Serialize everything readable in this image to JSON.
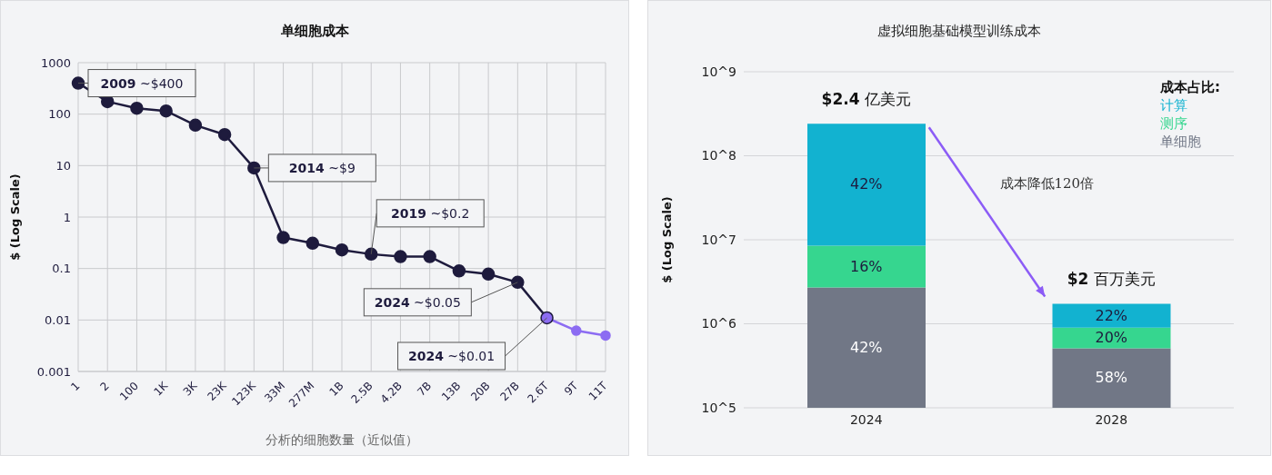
{
  "chart_data": [
    {
      "type": "line",
      "title": "单细胞成本",
      "xlabel": "分析的细胞数量（近似值）",
      "ylabel": "$ (Log Scale)",
      "log": "y",
      "grid": true,
      "marker": "circle",
      "line_style": "solid",
      "legend": false,
      "categories": [
        "1",
        "2",
        "100",
        "1K",
        "3K",
        "23K",
        "123K",
        "33M",
        "277M",
        "1B",
        "2.5B",
        "4.2B",
        "7B",
        "13B",
        "20B",
        "27B",
        "2.6T",
        "9T",
        "11T"
      ],
      "series": [
        {
          "color": "#1e1b3d",
          "values": [
            400,
            175,
            130,
            115,
            61,
            40,
            9,
            0.4,
            0.31,
            0.23,
            0.19,
            0.17,
            0.17,
            0.09,
            0.078,
            0.054,
            0.011,
            null,
            null
          ]
        },
        {
          "color": "#8c6cf2",
          "values": [
            null,
            null,
            null,
            null,
            null,
            null,
            null,
            null,
            null,
            null,
            null,
            null,
            null,
            null,
            null,
            null,
            0.011,
            0.0062,
            0.005
          ]
        }
      ],
      "ylim": [
        0.001,
        1000
      ],
      "yticks": [
        0.001,
        0.01,
        0.1,
        1,
        10,
        100,
        1000
      ],
      "annotations": [
        {
          "text": "2009 ~$400",
          "x": "1",
          "y": 400
        },
        {
          "text": "2014 ~$9",
          "x": "123K",
          "y": 9
        },
        {
          "text": "2019 ~$0.2",
          "x": "2.5B",
          "y": 0.19
        },
        {
          "text": "2024 ~$0.05",
          "x": "27B",
          "y": 0.054
        },
        {
          "text": "2024 ~$0.01",
          "x": "2.6T",
          "y": 0.011
        }
      ]
    },
    {
      "type": "bar",
      "title": "虚拟细胞基础模型训练成本",
      "ylabel": "$ (Log Scale)",
      "log": "y",
      "grid": "y",
      "stacked": true,
      "legend": "top right",
      "legend_title": "成本占比:",
      "categories": [
        "2024",
        "2028"
      ],
      "series": [
        {
          "name": "单细胞",
          "color": "#717786",
          "base": [
            100000,
            100000
          ],
          "values": [
            2600000,
            410000
          ]
        },
        {
          "name": "测序",
          "color": "#36d68f",
          "base": [
            2700000,
            510000
          ],
          "values": [
            5800000,
            390000
          ]
        },
        {
          "name": "计算",
          "color": "#12b2d0",
          "base": [
            8500000,
            900000
          ],
          "values": [
            231500000,
            830000
          ]
        }
      ],
      "ylim": [
        100000,
        1000000000
      ],
      "yticks": [
        {
          "value": 100000,
          "label": "10^5"
        },
        {
          "value": 1000000,
          "label": "10^6"
        },
        {
          "value": 10000000,
          "label": "10^7"
        },
        {
          "value": 100000000,
          "label": "10^8"
        },
        {
          "value": 1000000000,
          "label": "10^9"
        }
      ],
      "annotations": [
        "成本降低120倍",
        {
          "text": "$2.4 亿美元",
          "x": "2024",
          "y": 240000000
        },
        {
          "text": "$2 百万美元",
          "x": "2028",
          "y": 1730000
        },
        "42%",
        "16%",
        "42%",
        "22%",
        "20%",
        "58%"
      ]
    }
  ]
}
